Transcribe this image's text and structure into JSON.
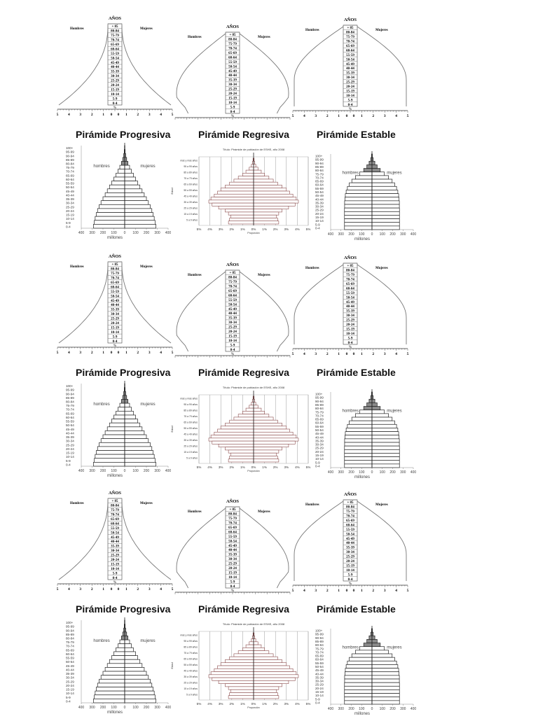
{
  "sets": [
    {
      "id": "set-1"
    },
    {
      "id": "set-2"
    },
    {
      "id": "set-3"
    }
  ],
  "outline": {
    "header_label": "AÑOS",
    "men_label": "Hombres",
    "women_label": "Mujeres",
    "percent_label": "%",
    "age_groups": [
      "+ 85",
      "80-84",
      "75-79",
      "70-74",
      "65-69",
      "60-64",
      "55-59",
      "50-54",
      "45-49",
      "40-44",
      "35-39",
      "30-34",
      "25-29",
      "20-24",
      "15-19",
      "10-14",
      "5-9",
      "0-4"
    ],
    "axis_ticks": [
      "5",
      "4",
      "3",
      "2",
      "1",
      "0",
      "0",
      "1",
      "2",
      "3",
      "4",
      "5"
    ]
  },
  "titles": {
    "progresiva": "Pirámide  Progresiva",
    "regresiva": "Pirámide  Regresiva",
    "estable": "Pirámide Estable"
  },
  "progresiva_chart": {
    "type": "bar",
    "men_label": "hombres",
    "women_label": "mujeres",
    "xlabel": "millones",
    "x_ticks": [
      "400",
      "300",
      "200",
      "100",
      "0",
      "100",
      "200",
      "300",
      "400"
    ],
    "xlim": [
      -400,
      400
    ],
    "age_groups": [
      "100+",
      "95-99",
      "90-94",
      "85-89",
      "80-84",
      "75-79",
      "70-74",
      "65-69",
      "60-64",
      "55-59",
      "50-54",
      "45-49",
      "40-44",
      "35-39",
      "30-34",
      "25-29",
      "20-24",
      "15-19",
      "10-14",
      "5-9",
      "0-4"
    ],
    "values": [
      2,
      4,
      9,
      18,
      30,
      45,
      62,
      80,
      100,
      120,
      140,
      160,
      180,
      200,
      218,
      235,
      250,
      262,
      272,
      280,
      288
    ]
  },
  "regresiva_chart": {
    "type": "bar",
    "title": "Título: Pirámide de población de ESHE, año 2008",
    "ylabel": "Edad",
    "xlabel": "Proporción",
    "x_ticks": [
      "5%",
      "4%",
      "3%",
      "2%",
      "1%",
      "0%",
      "1%",
      "2%",
      "3%",
      "4%",
      "5%"
    ],
    "xlim": [
      -5,
      5
    ],
    "age_groups": [
      "más y más años",
      "100 a 104 años",
      "95 a 99 años",
      "90 a 94 años",
      "85 a 89 años",
      "80 a 84 años",
      "75 a 79 años",
      "70 a 74 años",
      "65 a 69 años",
      "60 a 64 años",
      "55 a 59 años",
      "50 a 54 años",
      "45 a 49 años",
      "40 a 44 años",
      "35 a 39 años",
      "30 a 34 años",
      "25 a 29 años",
      "20 a 24 años",
      "15 a 19 años",
      "10 a 14 años",
      "5 a 9 años",
      "0 a 4 años"
    ],
    "values": [
      0.05,
      0.1,
      0.2,
      0.4,
      0.7,
      1.0,
      1.4,
      1.8,
      2.2,
      2.6,
      3.0,
      3.3,
      3.6,
      3.9,
      4.1,
      3.8,
      3.2,
      2.6,
      2.3,
      2.1,
      2.2,
      2.3
    ]
  },
  "estable_chart": {
    "type": "bar",
    "men_label": "hombres",
    "women_label": "mujeres",
    "xlabel": "millones",
    "x_ticks": [
      "400",
      "300",
      "200",
      "100",
      "0",
      "100",
      "200",
      "300",
      "400"
    ],
    "xlim": [
      -400,
      400
    ],
    "age_groups": [
      "100+",
      "95-99",
      "90-94",
      "85-89",
      "80-84",
      "75-79",
      "70-74",
      "65-69",
      "60-64",
      "55-59",
      "50-54",
      "45-49",
      "40-44",
      "35-39",
      "30-34",
      "25-29",
      "20-24",
      "15-19",
      "10-14",
      "5-9",
      "0-4"
    ],
    "values": [
      4,
      12,
      28,
      50,
      80,
      120,
      160,
      195,
      220,
      238,
      250,
      258,
      262,
      265,
      265,
      266,
      266,
      266,
      266,
      266,
      266
    ]
  }
}
